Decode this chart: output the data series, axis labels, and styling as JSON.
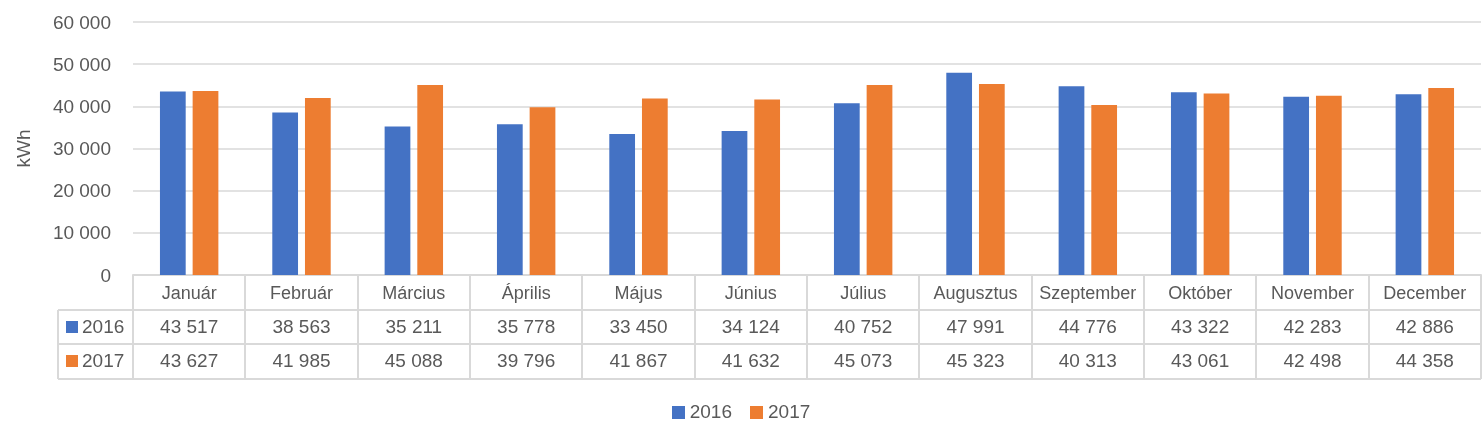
{
  "chart_data": {
    "type": "bar",
    "ylabel": "kWh",
    "categories": [
      "Január",
      "Február",
      "Március",
      "Április",
      "Május",
      "Június",
      "Július",
      "Augusztus",
      "Szeptember",
      "Október",
      "November",
      "December"
    ],
    "series": [
      {
        "name": "2016",
        "color": "#4472c4",
        "values": [
          43517,
          38563,
          35211,
          35778,
          33450,
          34124,
          40752,
          47991,
          44776,
          43322,
          42283,
          42886
        ],
        "value_labels": [
          "43 517",
          "38 563",
          "35 211",
          "35 778",
          "33 450",
          "34 124",
          "40 752",
          "47 991",
          "44 776",
          "43 322",
          "42 283",
          "42 886"
        ]
      },
      {
        "name": "2017",
        "color": "#ed7d31",
        "values": [
          43627,
          41985,
          45088,
          39796,
          41867,
          41632,
          45073,
          45323,
          40313,
          43061,
          42498,
          44358
        ],
        "value_labels": [
          "43 627",
          "41 985",
          "45 088",
          "39 796",
          "41 867",
          "41 632",
          "45 073",
          "45 323",
          "40 313",
          "43 061",
          "42 498",
          "44 358"
        ]
      }
    ],
    "ylim": [
      0,
      60000
    ],
    "yticks": [
      0,
      {
        "value": 10000,
        "label": "10 000"
      },
      {
        "value": 20000,
        "label": "20 000"
      },
      {
        "value": 30000,
        "label": "30 000"
      },
      {
        "value": 40000,
        "label": "40 000"
      },
      {
        "value": 50000,
        "label": "50 000"
      },
      {
        "value": 60000,
        "label": "60 000"
      }
    ],
    "grid": "y",
    "legend": "bottom"
  }
}
